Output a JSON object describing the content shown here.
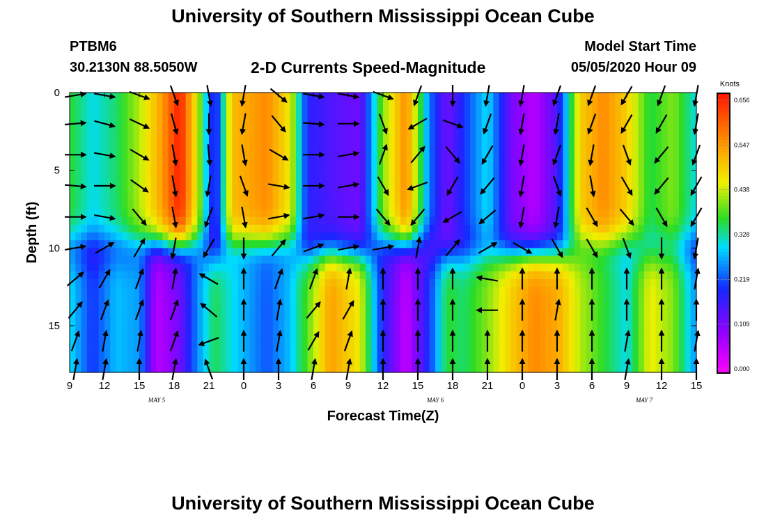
{
  "header": {
    "title": "University of Southern Mississippi Ocean Cube",
    "station": "PTBM6",
    "coords": "30.2130N 88.5050W",
    "subtitle": "2-D Currents Speed-Magnitude",
    "start_label": "Model Start Time",
    "start_value": "05/05/2020 Hour 09"
  },
  "footer": {
    "title": "University of Southern Mississippi Ocean Cube"
  },
  "chart_data": {
    "type": "heatmap",
    "title": "2-D Currents Speed-Magnitude",
    "xlabel": "Forecast Time(Z)",
    "ylabel": "Depth (ft)",
    "x_ticks": [
      "9",
      "12",
      "15",
      "18",
      "21",
      "0",
      "3",
      "6",
      "9",
      "12",
      "15",
      "18",
      "21",
      "0",
      "3",
      "6",
      "9",
      "12",
      "15"
    ],
    "date_labels": [
      {
        "label": "MAY 5",
        "tick_index": 2.5
      },
      {
        "label": "MAY 6",
        "tick_index": 10.5
      },
      {
        "label": "MAY 7",
        "tick_index": 16.5
      }
    ],
    "y_ticks": [
      0,
      5,
      10,
      15
    ],
    "ylim": [
      0,
      18
    ],
    "x_hours": [
      0,
      54
    ],
    "colorbar": {
      "label": "Knots",
      "ticks": [
        "0.656",
        "0.547",
        "0.438",
        "0.328",
        "0.219",
        "0.109",
        "0.000"
      ],
      "range": [
        0,
        0.656
      ]
    },
    "speed_profiles": [
      {
        "h": 0,
        "top": 0.36,
        "bottom": 0.3
      },
      {
        "h": 2,
        "top": 0.3,
        "bottom": 0.2
      },
      {
        "h": 4,
        "top": 0.34,
        "bottom": 0.28
      },
      {
        "h": 6,
        "top": 0.42,
        "bottom": 0.26
      },
      {
        "h": 7.5,
        "top": 0.5,
        "bottom": 0.06
      },
      {
        "h": 9.5,
        "top": 0.65,
        "bottom": 0.12
      },
      {
        "h": 11,
        "top": 0.44,
        "bottom": 0.25
      },
      {
        "h": 12.5,
        "top": 0.15,
        "bottom": 0.35
      },
      {
        "h": 14,
        "top": 0.5,
        "bottom": 0.3
      },
      {
        "h": 17,
        "top": 0.55,
        "bottom": 0.22
      },
      {
        "h": 19,
        "top": 0.45,
        "bottom": 0.28
      },
      {
        "h": 20.5,
        "top": 0.18,
        "bottom": 0.38
      },
      {
        "h": 22.5,
        "top": 0.15,
        "bottom": 0.53
      },
      {
        "h": 25,
        "top": 0.12,
        "bottom": 0.45
      },
      {
        "h": 27,
        "top": 0.4,
        "bottom": 0.18
      },
      {
        "h": 29,
        "top": 0.55,
        "bottom": 0.05
      },
      {
        "h": 31,
        "top": 0.24,
        "bottom": 0.2
      },
      {
        "h": 32.5,
        "top": 0.12,
        "bottom": 0.36
      },
      {
        "h": 34,
        "top": 0.2,
        "bottom": 0.34
      },
      {
        "h": 36,
        "top": 0.3,
        "bottom": 0.4
      },
      {
        "h": 38,
        "top": 0.12,
        "bottom": 0.48
      },
      {
        "h": 40,
        "top": 0.06,
        "bottom": 0.55
      },
      {
        "h": 42,
        "top": 0.15,
        "bottom": 0.52
      },
      {
        "h": 44,
        "top": 0.48,
        "bottom": 0.42
      },
      {
        "h": 46,
        "top": 0.55,
        "bottom": 0.36
      },
      {
        "h": 48,
        "top": 0.48,
        "bottom": 0.3
      },
      {
        "h": 50,
        "top": 0.35,
        "bottom": 0.45
      },
      {
        "h": 52,
        "top": 0.4,
        "bottom": 0.4
      },
      {
        "h": 54,
        "top": 0.3,
        "bottom": 0.25
      }
    ],
    "pycnocline_depth": 10,
    "vector_rows_ft": [
      0,
      2,
      4,
      6,
      8,
      10,
      12,
      14,
      16,
      18
    ],
    "vector_step_h": 3,
    "vector_directions_deg": [
      [
        80,
        100,
        110,
        160,
        170,
        190,
        130,
        100,
        100,
        110,
        200,
        180,
        190,
        190,
        200,
        200,
        210,
        200,
        190
      ],
      [
        85,
        105,
        115,
        165,
        180,
        190,
        140,
        95,
        90,
        160,
        240,
        110,
        200,
        190,
        190,
        200,
        210,
        210,
        190
      ],
      [
        90,
        100,
        120,
        170,
        175,
        170,
        120,
        90,
        80,
        20,
        40,
        140,
        210,
        190,
        200,
        190,
        160,
        220,
        200
      ],
      [
        95,
        90,
        125,
        170,
        190,
        160,
        100,
        90,
        80,
        150,
        250,
        210,
        220,
        190,
        160,
        170,
        150,
        220,
        210
      ],
      [
        90,
        100,
        140,
        170,
        200,
        170,
        80,
        80,
        90,
        140,
        220,
        240,
        230,
        190,
        190,
        150,
        140,
        150,
        210
      ],
      [
        80,
        60,
        30,
        190,
        210,
        180,
        40,
        70,
        80,
        80,
        10,
        40,
        60,
        120,
        150,
        150,
        160,
        180,
        190
      ],
      [
        50,
        30,
        20,
        10,
        300,
        0,
        20,
        20,
        10,
        0,
        0,
        0,
        280,
        0,
        0,
        0,
        0,
        0,
        10
      ],
      [
        40,
        20,
        20,
        20,
        310,
        0,
        10,
        40,
        30,
        0,
        0,
        0,
        270,
        0,
        10,
        0,
        0,
        0,
        0
      ],
      [
        20,
        10,
        10,
        20,
        250,
        0,
        10,
        30,
        20,
        0,
        0,
        0,
        0,
        0,
        0,
        0,
        10,
        0,
        10
      ],
      [
        10,
        10,
        0,
        10,
        340,
        0,
        0,
        10,
        10,
        0,
        0,
        0,
        0,
        0,
        0,
        0,
        10,
        0,
        0
      ]
    ]
  }
}
